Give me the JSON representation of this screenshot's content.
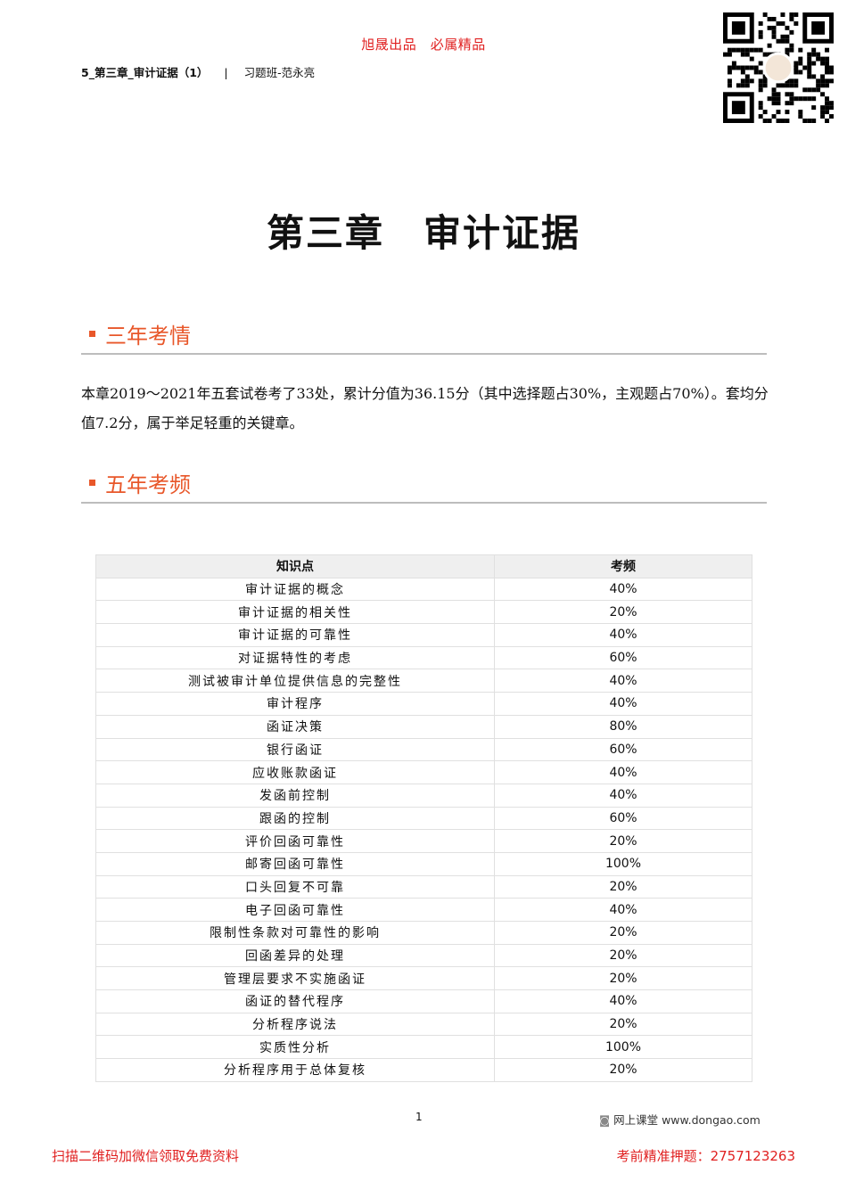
{
  "brand": "旭晟出品　必属精品",
  "header": {
    "doc": "5_第三章_审计证据（1）",
    "sep": "|",
    "course": "习题班-范永亮"
  },
  "title": {
    "chapter": "第三章",
    "name": "审计证据"
  },
  "sections": [
    {
      "title": "三年考情"
    },
    {
      "title": "五年考频"
    }
  ],
  "intro": "本章2019～2021年五套试卷考了33处，累计分值为36.15分（其中选择题占30%，主观题占70%）。套均分值7.2分，属于举足轻重的关键章。",
  "table": {
    "headers": [
      "知识点",
      "考频"
    ],
    "rows": [
      [
        "审计证据的概念",
        "40%"
      ],
      [
        "审计证据的相关性",
        "20%"
      ],
      [
        "审计证据的可靠性",
        "40%"
      ],
      [
        "对证据特性的考虑",
        "60%"
      ],
      [
        "测试被审计单位提供信息的完整性",
        "40%"
      ],
      [
        "审计程序",
        "40%"
      ],
      [
        "函证决策",
        "80%"
      ],
      [
        "银行函证",
        "60%"
      ],
      [
        "应收账款函证",
        "40%"
      ],
      [
        "发函前控制",
        "40%"
      ],
      [
        "跟函的控制",
        "60%"
      ],
      [
        "评价回函可靠性",
        "20%"
      ],
      [
        "邮寄回函可靠性",
        "100%"
      ],
      [
        "口头回复不可靠",
        "20%"
      ],
      [
        "电子回函可靠性",
        "40%"
      ],
      [
        "限制性条款对可靠性的影响",
        "20%"
      ],
      [
        "回函差异的处理",
        "20%"
      ],
      [
        "管理层要求不实施函证",
        "20%"
      ],
      [
        "函证的替代程序",
        "40%"
      ],
      [
        "分析程序说法",
        "20%"
      ],
      [
        "实质性分析",
        "100%"
      ],
      [
        "分析程序用于总体复核",
        "20%"
      ]
    ]
  },
  "footer": {
    "page": "1",
    "site": "网上课堂  www.dongao.com",
    "left": "扫描二维码加微信领取免费资料",
    "right": "考前精准押题：2757123263"
  },
  "colors": {
    "accent": "#e8572a",
    "red": "#e02020"
  }
}
